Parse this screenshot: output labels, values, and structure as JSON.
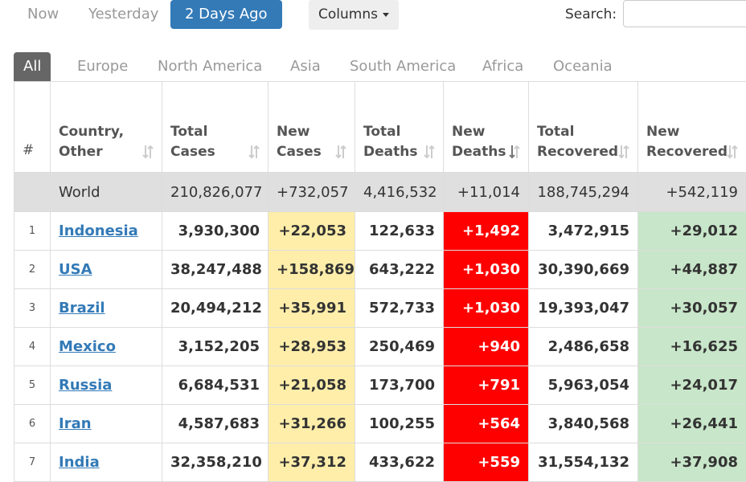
{
  "top_bar": {
    "day_tabs": [
      "Now",
      "Yesterday",
      "2 Days Ago"
    ],
    "active_day_tab": 2,
    "columns_button": "Columns",
    "search_label": "Search:"
  },
  "region_tabs": [
    "All",
    "Europe",
    "North America",
    "Asia",
    "South America",
    "Africa",
    "Oceania"
  ],
  "active_region_tab": 0,
  "table": {
    "headers": [
      "#",
      "Country, Other",
      "Total Cases",
      "New Cases",
      "Total Deaths",
      "New Deaths",
      "Total Recovered",
      "New Recovered"
    ],
    "world_row": [
      "World",
      "210,826,077",
      "+732,057",
      "4,416,532",
      "+11,014",
      "188,745,294",
      "+542,119"
    ],
    "rows": [
      [
        "1",
        "Indonesia",
        "3,930,300",
        "+22,053",
        "122,633",
        "+1,492",
        "3,472,915",
        "+29,012"
      ],
      [
        "2",
        "USA",
        "38,247,488",
        "+158,869",
        "643,222",
        "+1,030",
        "30,390,669",
        "+44,887"
      ],
      [
        "3",
        "Brazil",
        "20,494,212",
        "+35,991",
        "572,733",
        "+1,030",
        "19,393,047",
        "+30,057"
      ],
      [
        "4",
        "Mexico",
        "3,152,205",
        "+28,953",
        "250,469",
        "+940",
        "2,486,658",
        "+16,625"
      ],
      [
        "5",
        "Russia",
        "6,684,531",
        "+21,058",
        "173,700",
        "+791",
        "5,963,054",
        "+24,017"
      ],
      [
        "6",
        "Iran",
        "4,587,683",
        "+31,266",
        "100,255",
        "+564",
        "3,840,568",
        "+26,441"
      ],
      [
        "7",
        "India",
        "32,358,210",
        "+37,312",
        "433,622",
        "+559",
        "31,554,132",
        "+37,908"
      ]
    ]
  }
}
